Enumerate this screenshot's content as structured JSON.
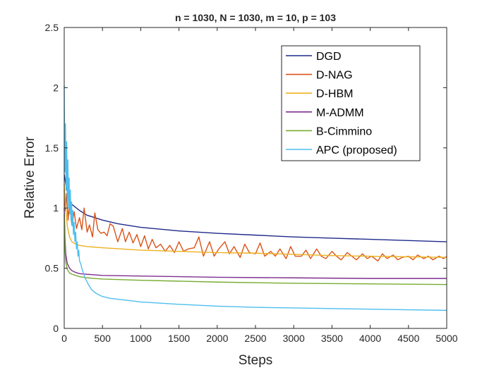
{
  "chart_data": {
    "type": "line",
    "title": "n = 1030, N = 1030, m = 10, p = 103",
    "xlabel": "Steps",
    "ylabel": "Relative Error",
    "xlim": [
      0,
      5000
    ],
    "ylim": [
      0,
      2.5
    ],
    "xticks": [
      0,
      500,
      1000,
      1500,
      2000,
      2500,
      3000,
      3500,
      4000,
      4500,
      5000
    ],
    "yticks": [
      0,
      0.5,
      1,
      1.5,
      2,
      2.5
    ],
    "xtick_labels": [
      "0",
      "500",
      "1000",
      "1500",
      "2000",
      "2500",
      "3000",
      "3500",
      "4000",
      "4500",
      "5000"
    ],
    "ytick_labels": [
      "0",
      "0.5",
      "1",
      "1.5",
      "2",
      "2.5"
    ],
    "grid": false,
    "legend_position": "top-right",
    "series": [
      {
        "name": "DGD",
        "color": "#1f2a8a",
        "x": [
          0,
          20,
          50,
          100,
          200,
          300,
          500,
          700,
          1000,
          1500,
          2000,
          2500,
          3000,
          3500,
          4000,
          4500,
          5000
        ],
        "values": [
          1.28,
          1.2,
          1.1,
          1.03,
          0.98,
          0.94,
          0.9,
          0.87,
          0.84,
          0.81,
          0.79,
          0.775,
          0.76,
          0.75,
          0.74,
          0.73,
          0.72
        ]
      },
      {
        "name": "D-NAG",
        "color": "#d95319",
        "x": [
          0,
          15,
          30,
          50,
          70,
          100,
          130,
          160,
          200,
          230,
          260,
          300,
          330,
          370,
          400,
          440,
          480,
          520,
          560,
          600,
          640,
          700,
          760,
          800,
          850,
          900,
          950,
          1000,
          1050,
          1100,
          1150,
          1200,
          1260,
          1320,
          1380,
          1440,
          1500,
          1560,
          1620,
          1700,
          1760,
          1820,
          1900,
          1960,
          2020,
          2100,
          2160,
          2220,
          2300,
          2360,
          2420,
          2500,
          2560,
          2620,
          2700,
          2760,
          2820,
          2900,
          2960,
          3020,
          3100,
          3160,
          3220,
          3300,
          3360,
          3420,
          3500,
          3560,
          3620,
          3700,
          3760,
          3820,
          3900,
          3960,
          4020,
          4100,
          4160,
          4220,
          4300,
          4360,
          4420,
          4500,
          4560,
          4620,
          4700,
          4760,
          4820,
          4900,
          4960,
          5000
        ],
        "values": [
          1.15,
          0.98,
          1.12,
          0.9,
          1.05,
          0.86,
          0.97,
          0.83,
          0.92,
          0.82,
          1.0,
          0.8,
          0.86,
          0.76,
          0.96,
          0.82,
          0.79,
          0.8,
          0.77,
          0.87,
          0.85,
          0.72,
          0.83,
          0.72,
          0.8,
          0.71,
          0.78,
          0.68,
          0.77,
          0.66,
          0.74,
          0.67,
          0.7,
          0.64,
          0.69,
          0.63,
          0.72,
          0.64,
          0.66,
          0.67,
          0.76,
          0.6,
          0.72,
          0.6,
          0.66,
          0.72,
          0.62,
          0.68,
          0.59,
          0.7,
          0.63,
          0.62,
          0.71,
          0.6,
          0.64,
          0.6,
          0.66,
          0.58,
          0.68,
          0.6,
          0.6,
          0.65,
          0.58,
          0.66,
          0.6,
          0.58,
          0.64,
          0.6,
          0.57,
          0.63,
          0.6,
          0.57,
          0.62,
          0.58,
          0.6,
          0.56,
          0.62,
          0.58,
          0.61,
          0.57,
          0.59,
          0.6,
          0.57,
          0.61,
          0.58,
          0.6,
          0.57,
          0.6,
          0.58,
          0.6
        ]
      },
      {
        "name": "D-HBM",
        "color": "#edb120",
        "x": [
          0,
          20,
          40,
          70,
          100,
          150,
          200,
          300,
          500,
          1000,
          1500,
          2000,
          2500,
          3000,
          3500,
          4000,
          4500,
          5000
        ],
        "values": [
          1.2,
          1.0,
          0.85,
          0.76,
          0.72,
          0.7,
          0.69,
          0.68,
          0.67,
          0.65,
          0.64,
          0.63,
          0.625,
          0.615,
          0.605,
          0.6,
          0.595,
          0.59
        ]
      },
      {
        "name": "M-ADMM",
        "color": "#7e2f8e",
        "x": [
          0,
          10,
          20,
          40,
          70,
          100,
          150,
          200,
          300,
          500,
          1000,
          2000,
          3000,
          4000,
          5000
        ],
        "values": [
          1.0,
          0.75,
          0.62,
          0.54,
          0.5,
          0.48,
          0.465,
          0.455,
          0.45,
          0.44,
          0.435,
          0.425,
          0.42,
          0.415,
          0.415
        ]
      },
      {
        "name": "B-Cimmino",
        "color": "#77ac30",
        "x": [
          0,
          10,
          20,
          40,
          70,
          100,
          150,
          200,
          300,
          500,
          1000,
          2000,
          3000,
          4000,
          5000
        ],
        "values": [
          0.95,
          0.65,
          0.55,
          0.49,
          0.46,
          0.45,
          0.44,
          0.43,
          0.42,
          0.41,
          0.4,
          0.385,
          0.375,
          0.37,
          0.365
        ]
      },
      {
        "name": "APC (proposed)",
        "color": "#4dbeee",
        "x": [
          0,
          8,
          16,
          24,
          32,
          40,
          48,
          56,
          64,
          72,
          80,
          88,
          96,
          104,
          112,
          120,
          130,
          140,
          150,
          160,
          170,
          180,
          190,
          200,
          215,
          230,
          250,
          280,
          320,
          360,
          420,
          500,
          600,
          800,
          1000,
          1500,
          2000,
          2500,
          3000,
          3500,
          4000,
          4500,
          5000
        ],
        "values": [
          2.02,
          1.3,
          1.7,
          1.15,
          1.55,
          1.05,
          1.4,
          1.0,
          1.25,
          0.95,
          1.15,
          0.9,
          1.05,
          0.85,
          0.98,
          0.78,
          0.88,
          0.72,
          0.8,
          0.66,
          0.72,
          0.6,
          0.65,
          0.56,
          0.54,
          0.5,
          0.46,
          0.41,
          0.36,
          0.32,
          0.29,
          0.265,
          0.25,
          0.235,
          0.22,
          0.2,
          0.185,
          0.175,
          0.17,
          0.165,
          0.16,
          0.155,
          0.15
        ]
      }
    ]
  }
}
